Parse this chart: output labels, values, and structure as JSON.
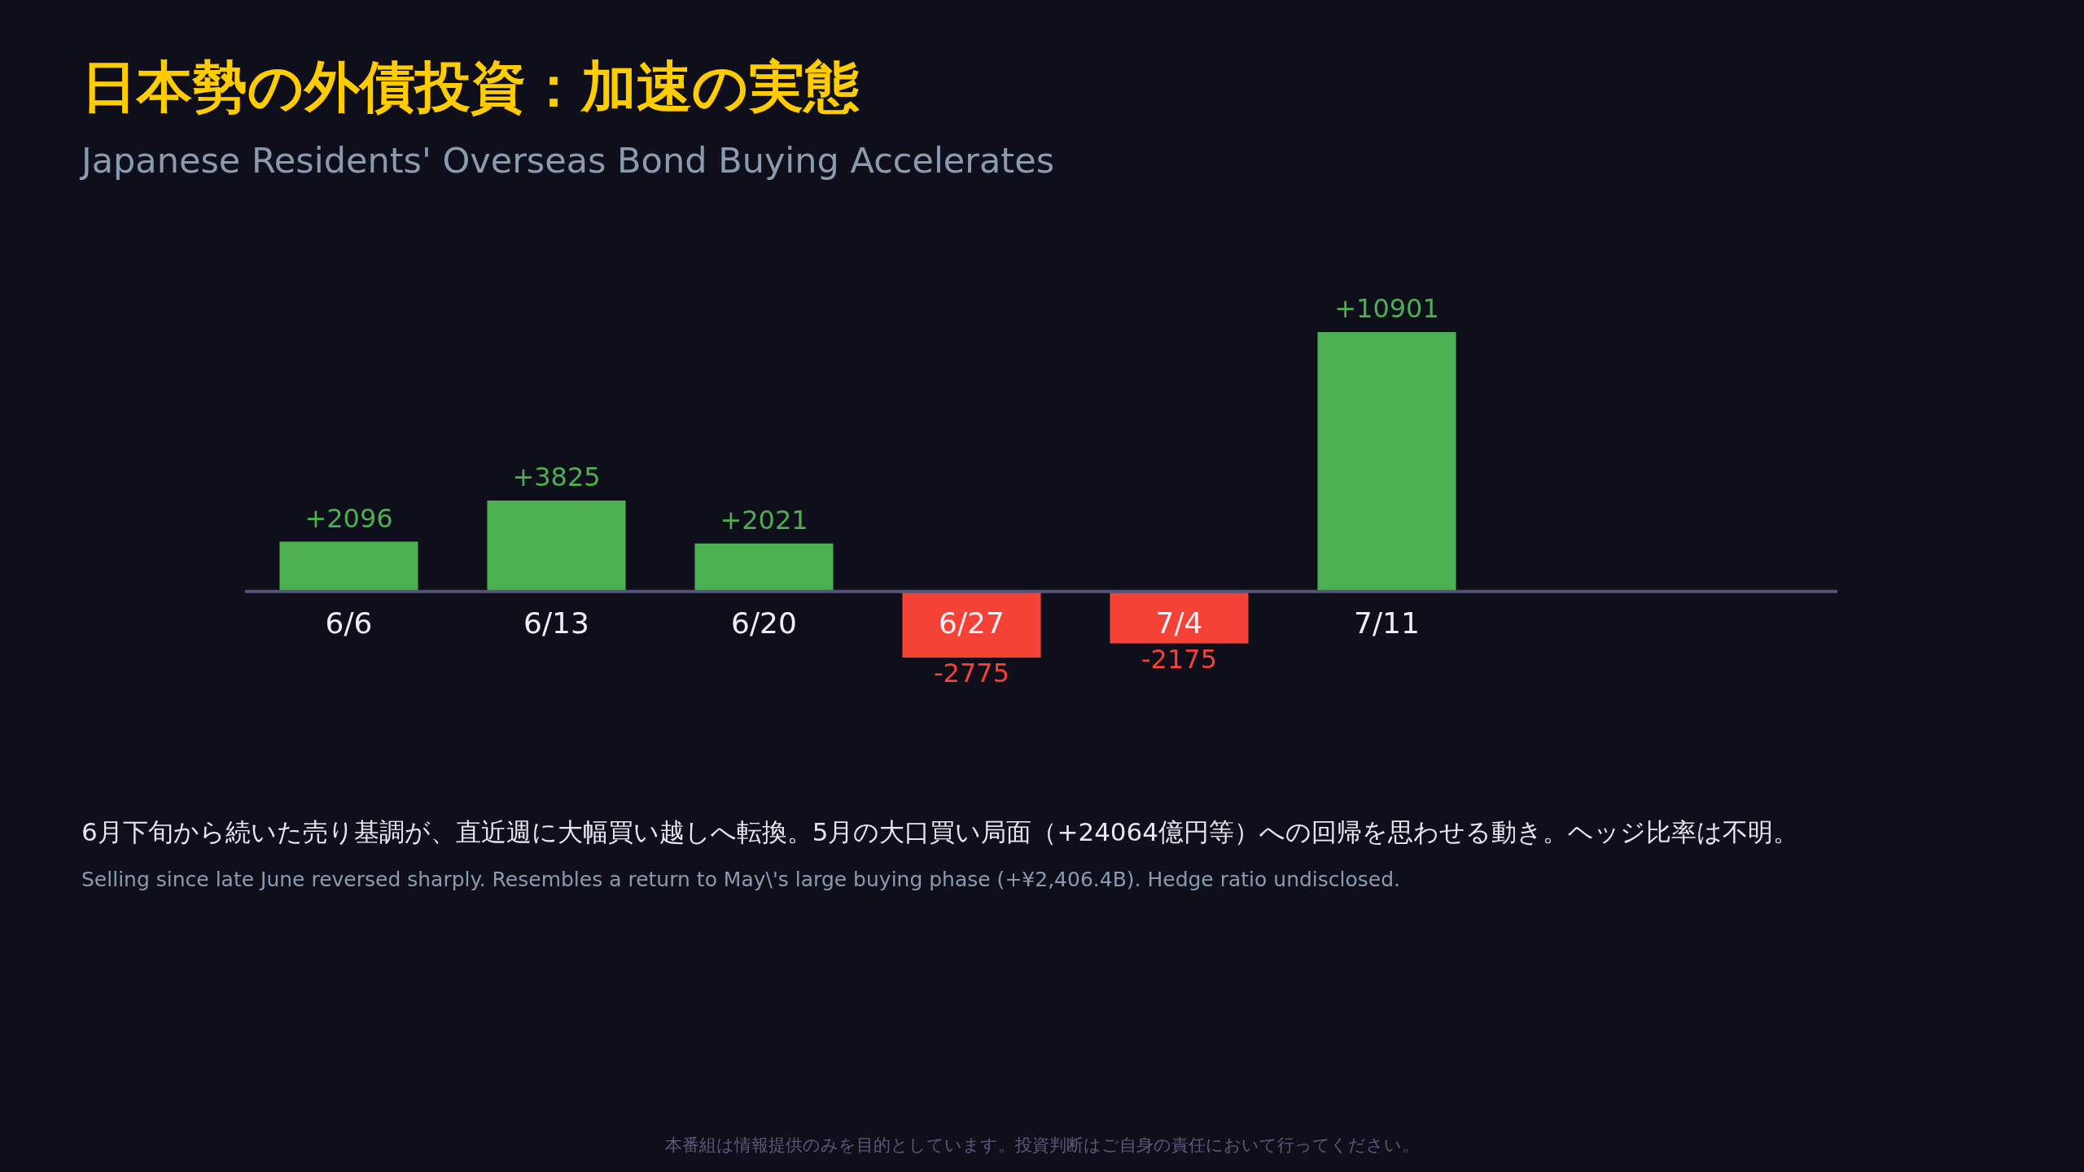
{
  "chart_data": {
    "type": "bar",
    "title": "日本勢の外債投資：加速の実態",
    "subtitle": "Japanese Residents' Overseas Bond Buying Accelerates",
    "categories": [
      "6/6",
      "6/13",
      "6/20",
      "6/27",
      "7/4",
      "7/11",
      null,
      null
    ],
    "values": [
      2096,
      3825,
      2021,
      -2775,
      -2175,
      10901,
      null,
      null
    ],
    "value_labels": [
      "+2096",
      "+3825",
      "+2021",
      "-2775",
      "-2175",
      "+10901",
      null,
      null
    ],
    "colors": [
      "#4caf50",
      "#4caf50",
      "#4caf50",
      "#f44336",
      "#f44336",
      "#4caf50",
      "#4caf50",
      "#4caf50"
    ],
    "annotations": [
      "6月下旬から続いた売り基調が、直近週に大幅買い越しへ転換。5月の大口買い局面（+24064億円等）への回帰を思わせる動き。ヘッジ比率は不明。",
      "Selling since late June reversed sharply. Resembles a return to May\\'s large buying phase (+¥2,406.4B). Hedge ratio undisclosed.",
      "本番組は情報提供のみを目的としています。投資判断はご自身の責任において行ってください。"
    ],
    "legend": false
  }
}
